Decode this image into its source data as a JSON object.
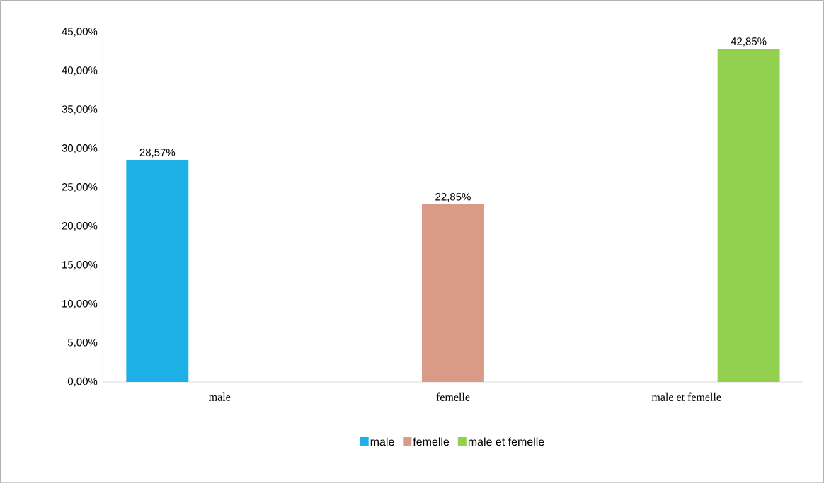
{
  "chart_data": {
    "type": "bar",
    "categories": [
      "male",
      "femelle",
      "male et femelle"
    ],
    "series": [
      {
        "name": "male",
        "color": "#1cb0e6",
        "values": [
          28.57,
          null,
          null
        ],
        "value_labels": [
          "28,57%",
          null,
          null
        ]
      },
      {
        "name": "femelle",
        "color": "#d99a86",
        "values": [
          null,
          22.85,
          null
        ],
        "value_labels": [
          null,
          "22,85%",
          null
        ]
      },
      {
        "name": "male et femelle",
        "color": "#92d050",
        "values": [
          null,
          null,
          42.85
        ],
        "value_labels": [
          null,
          null,
          "42,85%"
        ]
      }
    ],
    "ylim": [
      0,
      45
    ],
    "yticks": [
      {
        "value": 0,
        "label": "0,00%"
      },
      {
        "value": 5,
        "label": "5,00%"
      },
      {
        "value": 10,
        "label": "10,00%"
      },
      {
        "value": 15,
        "label": "15,00%"
      },
      {
        "value": 20,
        "label": "20,00%"
      },
      {
        "value": 25,
        "label": "25,00%"
      },
      {
        "value": 30,
        "label": "30,00%"
      },
      {
        "value": 35,
        "label": "35,00%"
      },
      {
        "value": 40,
        "label": "40,00%"
      },
      {
        "value": 45,
        "label": "45,00%"
      }
    ],
    "legend": "bottom"
  }
}
